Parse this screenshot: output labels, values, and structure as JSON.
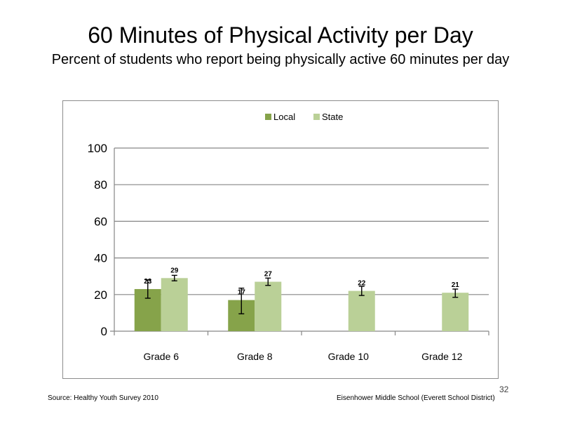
{
  "slide": {
    "title": "60 Minutes of Physical Activity per Day",
    "subtitle": "Percent of students who report being physically  active 60 minutes  per day",
    "page_number": "32"
  },
  "footer": {
    "source": "Source: Healthy Youth Survey 2010",
    "school": "Eisenhower Middle  School (Everett School District)"
  },
  "colors": {
    "local": "#86a34a",
    "state": "#bad097",
    "gridline": "#868686",
    "error_bar": "#000000"
  },
  "chart_data": {
    "type": "bar",
    "categories": [
      "Grade 6",
      "Grade 8",
      "Grade 10",
      "Grade 12"
    ],
    "series": [
      {
        "name": "Local",
        "color": "#86a34a",
        "values": [
          23,
          17,
          null,
          null
        ],
        "labels": [
          "23",
          "17",
          "",
          ""
        ],
        "error_low": [
          18,
          9.5,
          null,
          null
        ],
        "error_high": [
          28,
          23.5,
          null,
          null
        ]
      },
      {
        "name": "State",
        "color": "#bad097",
        "values": [
          29,
          27,
          22,
          21
        ],
        "labels": [
          "29",
          "27",
          "22",
          "21"
        ],
        "error_low": [
          27.5,
          25,
          19.5,
          18.5
        ],
        "error_high": [
          30.5,
          29,
          24.5,
          23
        ]
      }
    ],
    "ylim": [
      0,
      100
    ],
    "yticks": [
      "0",
      "20",
      "40",
      "60",
      "80",
      "100"
    ],
    "ytick_values": [
      0,
      20,
      40,
      60,
      80,
      100
    ],
    "grid": true,
    "legend_position": "top-center",
    "xlabel": "",
    "ylabel": ""
  }
}
